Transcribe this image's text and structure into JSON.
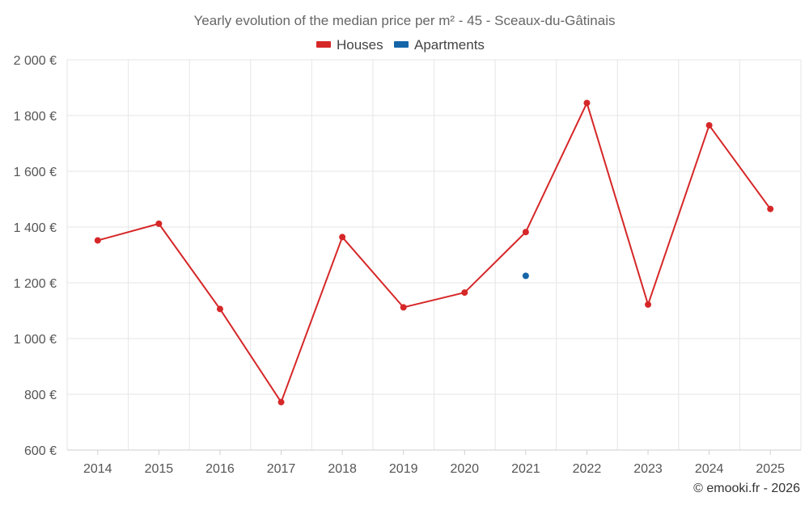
{
  "chart_data": {
    "type": "line",
    "title": "Yearly evolution of the median price per m² - 45 - Sceaux-du-Gâtinais",
    "categories": [
      "2014",
      "2015",
      "2016",
      "2017",
      "2018",
      "2019",
      "2020",
      "2021",
      "2022",
      "2023",
      "2024",
      "2025"
    ],
    "y_ticks": [
      600,
      800,
      1000,
      1200,
      1400,
      1600,
      1800,
      2000
    ],
    "y_tick_labels": [
      "600 €",
      "800 €",
      "1 000 €",
      "1 200 €",
      "1 400 €",
      "1 600 €",
      "1 800 €",
      "2 000 €"
    ],
    "ylim": [
      600,
      2000
    ],
    "grid": true,
    "legend_position": "top-center",
    "series": [
      {
        "name": "Houses",
        "color": "#d62728",
        "values": [
          1352,
          1412,
          1106,
          772,
          1364,
          1112,
          1165,
          1382,
          1845,
          1122,
          1765,
          1465
        ]
      },
      {
        "name": "Apartments",
        "color": "#1565a8",
        "values": [
          null,
          null,
          null,
          null,
          null,
          null,
          null,
          1225,
          null,
          null,
          null,
          null
        ]
      }
    ]
  },
  "credit": "© emooki.fr - 2026"
}
